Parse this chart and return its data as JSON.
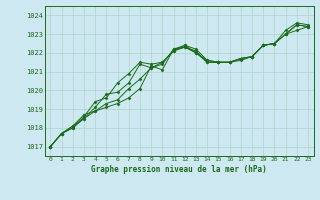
{
  "title": "Graphe pression niveau de la mer (hPa)",
  "bg_color": "#cde8f0",
  "grid_color": "#b0d4c8",
  "line_color": "#1a6b1a",
  "marker_color": "#1a6b1a",
  "xlim": [
    -0.5,
    23.5
  ],
  "ylim": [
    1016.5,
    1024.5
  ],
  "yticks": [
    1017,
    1018,
    1019,
    1020,
    1021,
    1022,
    1023,
    1024
  ],
  "xticks": [
    0,
    1,
    2,
    3,
    4,
    5,
    6,
    7,
    8,
    9,
    10,
    11,
    12,
    13,
    14,
    15,
    16,
    17,
    18,
    19,
    20,
    21,
    22,
    23
  ],
  "series": [
    [
      1017.0,
      1017.7,
      1018.0,
      1018.5,
      1018.9,
      1019.3,
      1019.5,
      1020.1,
      1020.6,
      1021.2,
      1021.5,
      1022.1,
      1022.4,
      1022.2,
      1021.6,
      1021.5,
      1021.5,
      1021.7,
      1021.8,
      1022.4,
      1022.5,
      1023.0,
      1023.2,
      1023.4
    ],
    [
      1017.0,
      1017.7,
      1018.0,
      1018.6,
      1019.4,
      1019.6,
      1020.4,
      1020.9,
      1021.5,
      1021.4,
      1021.5,
      1022.1,
      1022.3,
      1022.0,
      1021.5,
      1021.5,
      1021.5,
      1021.7,
      1021.8,
      1022.4,
      1022.5,
      1023.0,
      1023.5,
      1023.4
    ],
    [
      1017.0,
      1017.7,
      1018.1,
      1018.5,
      1019.1,
      1019.8,
      1019.9,
      1020.4,
      1021.4,
      1021.2,
      1021.4,
      1022.2,
      1022.4,
      1022.0,
      1021.6,
      1021.5,
      1021.5,
      1021.6,
      1021.8,
      1022.4,
      1022.5,
      1023.0,
      1023.5,
      1023.4
    ],
    [
      1017.0,
      1017.7,
      1018.1,
      1018.7,
      1018.9,
      1019.1,
      1019.3,
      1019.6,
      1020.1,
      1021.3,
      1021.1,
      1022.2,
      1022.3,
      1022.1,
      1021.5,
      1021.5,
      1021.5,
      1021.7,
      1021.8,
      1022.4,
      1022.5,
      1023.2,
      1023.6,
      1023.5
    ]
  ]
}
